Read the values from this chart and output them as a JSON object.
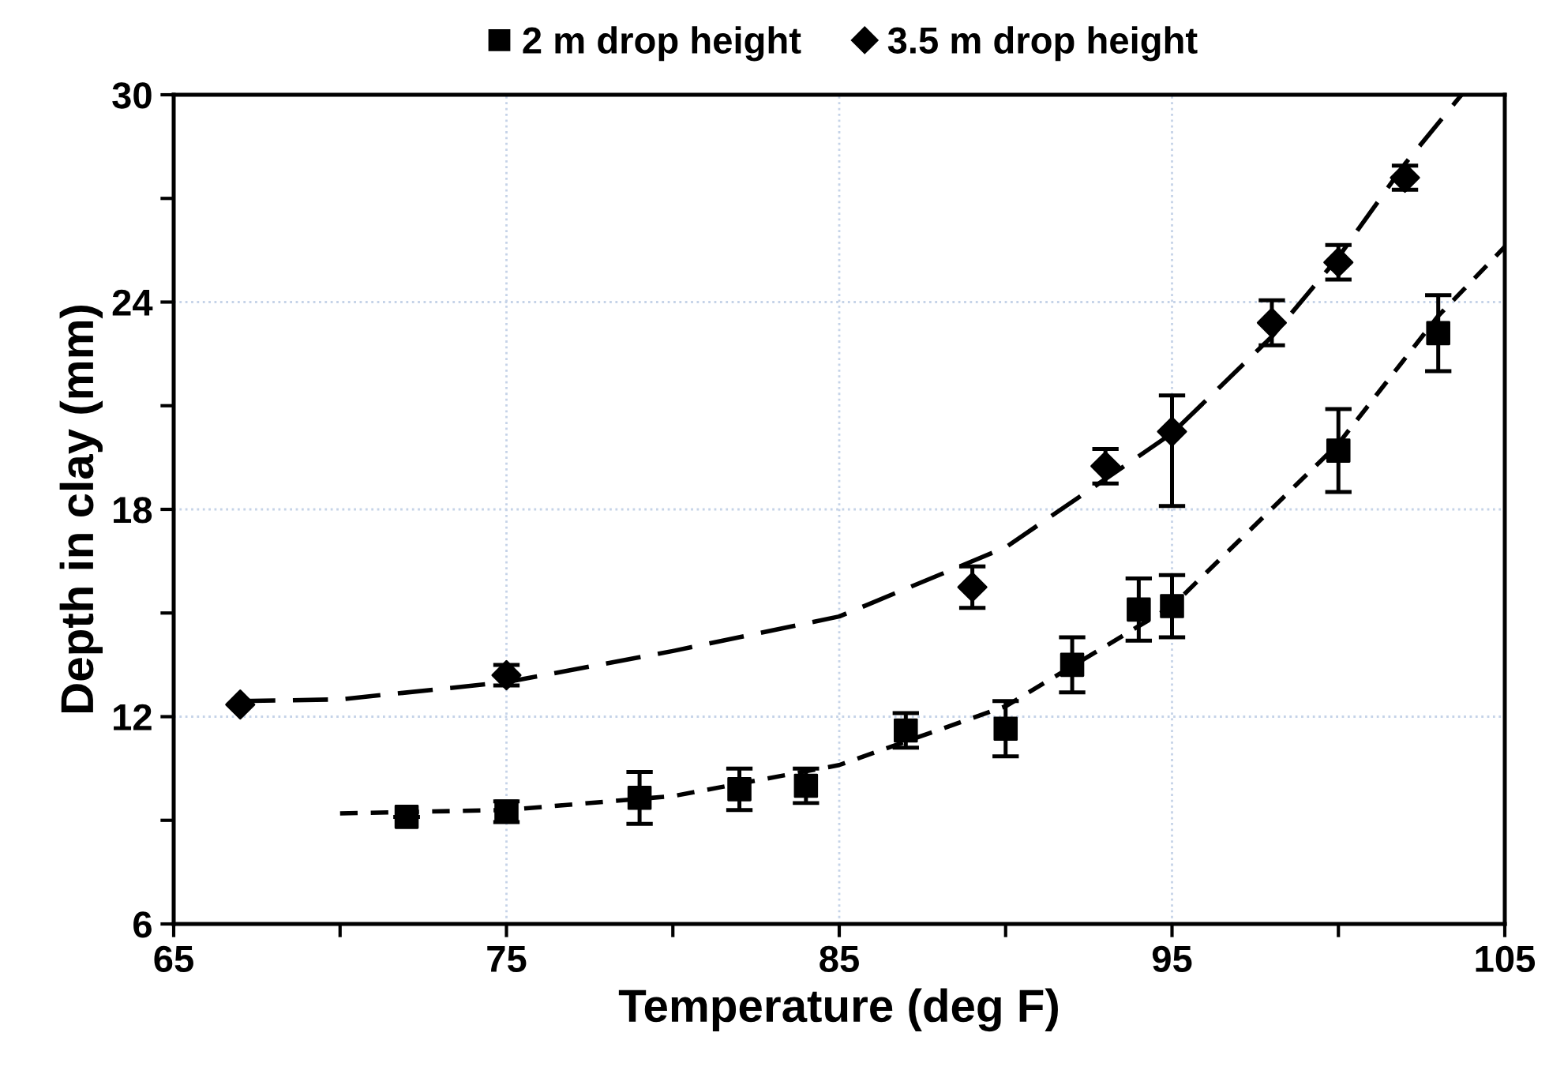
{
  "chart_data": {
    "type": "scatter",
    "xlabel": "Temperature (deg F)",
    "ylabel": "Depth in clay (mm)",
    "xlim": [
      65,
      105
    ],
    "ylim": [
      6,
      30
    ],
    "xticks": [
      65,
      {
        "value": 70,
        "label": null
      },
      75,
      {
        "value": 80,
        "label": null
      },
      85,
      {
        "value": 90,
        "label": null
      },
      95,
      {
        "value": 100,
        "label": null
      },
      105
    ],
    "yticks": [
      6,
      {
        "value": 9,
        "label": null
      },
      12,
      {
        "value": 15,
        "label": null
      },
      18,
      {
        "value": 21,
        "label": null
      },
      24,
      {
        "value": 27,
        "label": null
      },
      30
    ],
    "grid": true,
    "legend": "top",
    "series": [
      {
        "name": "2 m drop height",
        "marker": "square",
        "color": "#000000",
        "x": [
          72,
          75,
          79,
          82,
          84,
          87,
          90,
          92,
          94,
          95,
          100,
          103
        ],
        "values": [
          9.1,
          9.25,
          9.65,
          9.9,
          10.0,
          11.6,
          11.65,
          13.5,
          15.1,
          15.2,
          19.7,
          23.1
        ],
        "errors": [
          null,
          0.3,
          0.75,
          0.6,
          0.5,
          0.5,
          0.8,
          0.8,
          0.9,
          0.9,
          1.2,
          1.1
        ]
      },
      {
        "name": "3.5 m drop height",
        "marker": "diamond",
        "color": "#000000",
        "x": [
          67,
          75,
          89,
          93,
          95,
          98,
          100,
          102
        ],
        "values": [
          12.35,
          13.2,
          15.75,
          19.25,
          20.25,
          23.4,
          25.15,
          27.6
        ],
        "errors": [
          null,
          0.3,
          0.6,
          0.5,
          [
            18.1,
            21.3
          ],
          0.65,
          0.5,
          0.35
        ]
      },
      {
        "type": "line",
        "line_style": "dashed",
        "color": "#000000",
        "x": [
          70,
          75,
          80,
          85,
          90,
          95,
          100,
          103,
          105
        ],
        "values": [
          9.2,
          9.3,
          9.7,
          10.6,
          12.3,
          15.2,
          19.9,
          23.6,
          25.6
        ]
      },
      {
        "type": "line",
        "line_style": "dashed",
        "color": "#000000",
        "x": [
          67,
          70,
          75,
          80,
          85,
          90,
          95,
          98,
          100,
          102,
          103.7
        ],
        "values": [
          12.45,
          12.5,
          13.0,
          13.9,
          14.9,
          16.9,
          20.2,
          23.0,
          25.3,
          28.0,
          30
        ]
      }
    ]
  }
}
